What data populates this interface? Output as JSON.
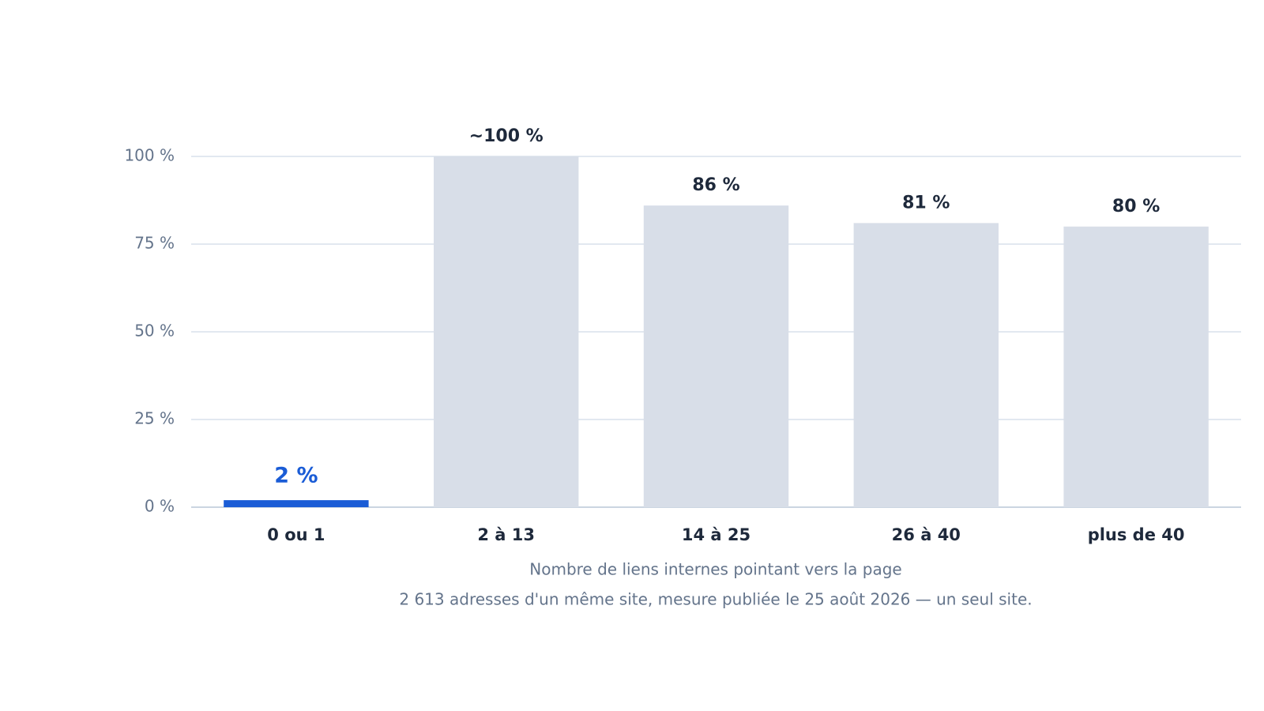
{
  "chart_data": {
    "type": "bar",
    "categories": [
      "0 ou 1",
      "2 à 13",
      "14 à 25",
      "26 à 40",
      "plus de 40"
    ],
    "values": [
      2,
      100,
      86,
      81,
      80
    ],
    "value_labels": [
      "2 %",
      "~100 %",
      "86 %",
      "81 %",
      "80 %"
    ],
    "colors": [
      "#1a5cd6",
      "#d8dee8",
      "#d8dee8",
      "#d8dee8",
      "#d8dee8"
    ],
    "label_colors": [
      "#1a5cd6",
      "#1e293b",
      "#1e293b",
      "#1e293b",
      "#1e293b"
    ],
    "ylim": [
      0,
      100
    ],
    "yticks": [
      {
        "value": 0,
        "label": "0 %"
      },
      {
        "value": 25,
        "label": "25 %"
      },
      {
        "value": 50,
        "label": "50 %"
      },
      {
        "value": 75,
        "label": "75 %"
      },
      {
        "value": 100,
        "label": "100 %"
      }
    ],
    "grid": true,
    "xlabel": "Nombre de liens internes pointant vers la page",
    "note": "2 613 adresses d'un même site, mesure publiée le 25 août 2026 — un seul site."
  }
}
